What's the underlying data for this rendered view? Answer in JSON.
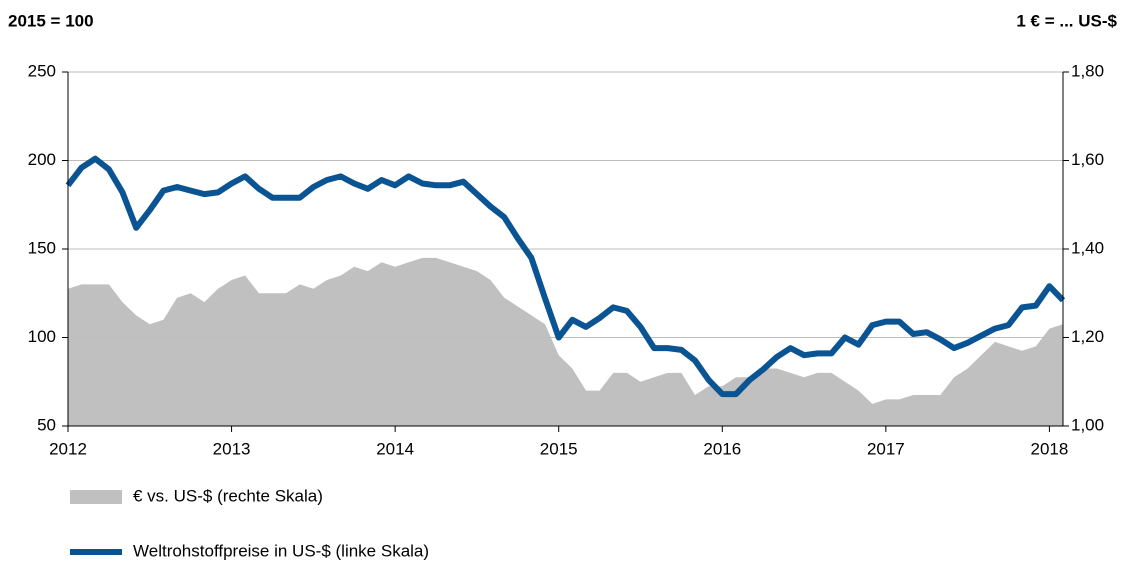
{
  "chart_data": {
    "type": "line",
    "y_axis_title": "2015 = 100",
    "y2_axis_title": "1 € = ... US-$",
    "x": [
      2012,
      2012.083,
      2012.167,
      2012.25,
      2012.333,
      2012.417,
      2012.5,
      2012.583,
      2012.667,
      2012.75,
      2012.833,
      2012.917,
      2013,
      2013.083,
      2013.167,
      2013.25,
      2013.333,
      2013.417,
      2013.5,
      2013.583,
      2013.667,
      2013.75,
      2013.833,
      2013.917,
      2014,
      2014.083,
      2014.167,
      2014.25,
      2014.333,
      2014.417,
      2014.5,
      2014.583,
      2014.667,
      2014.75,
      2014.833,
      2014.917,
      2015,
      2015.083,
      2015.167,
      2015.25,
      2015.333,
      2015.417,
      2015.5,
      2015.583,
      2015.667,
      2015.75,
      2015.833,
      2015.917,
      2016,
      2016.083,
      2016.167,
      2016.25,
      2016.333,
      2016.417,
      2016.5,
      2016.583,
      2016.667,
      2016.75,
      2016.833,
      2016.917,
      2017,
      2017.083,
      2017.167,
      2017.25,
      2017.333,
      2017.417,
      2017.5,
      2017.583,
      2017.667,
      2017.75,
      2017.833,
      2017.917,
      2018,
      2018.083
    ],
    "series": [
      {
        "name": "€ vs. US-$ (rechte Skala)",
        "color": "#c0c0c0",
        "axis": "y2",
        "style": "area",
        "values": [
          1.31,
          1.32,
          1.32,
          1.32,
          1.28,
          1.25,
          1.23,
          1.24,
          1.29,
          1.3,
          1.28,
          1.31,
          1.33,
          1.34,
          1.3,
          1.3,
          1.3,
          1.32,
          1.31,
          1.33,
          1.34,
          1.36,
          1.35,
          1.37,
          1.36,
          1.37,
          1.38,
          1.38,
          1.37,
          1.36,
          1.35,
          1.33,
          1.29,
          1.27,
          1.25,
          1.23,
          1.16,
          1.13,
          1.08,
          1.08,
          1.12,
          1.12,
          1.1,
          1.11,
          1.12,
          1.12,
          1.07,
          1.09,
          1.09,
          1.11,
          1.11,
          1.13,
          1.13,
          1.12,
          1.11,
          1.12,
          1.12,
          1.1,
          1.08,
          1.05,
          1.06,
          1.06,
          1.07,
          1.07,
          1.07,
          1.11,
          1.13,
          1.16,
          1.19,
          1.18,
          1.17,
          1.18,
          1.22,
          1.23
        ]
      },
      {
        "name": "Weltrohstoffpreise in US-$ (linke Skala)",
        "color": "#0a5494",
        "style": "line",
        "values": [
          186,
          196,
          201,
          195,
          182,
          162,
          172,
          183,
          185,
          183,
          181,
          182,
          187,
          191,
          184,
          179,
          179,
          179,
          185,
          189,
          191,
          187,
          184,
          189,
          186,
          191,
          187,
          186,
          186,
          188,
          181,
          174,
          168,
          156,
          145,
          122,
          100,
          110,
          106,
          111,
          117,
          115,
          106,
          94,
          94,
          93,
          87,
          76,
          68,
          68,
          76,
          82,
          89,
          94,
          90,
          91,
          91,
          100,
          96,
          107,
          109,
          109,
          102,
          103,
          99,
          94,
          97,
          101,
          105,
          107,
          117,
          118,
          129,
          121
        ]
      }
    ],
    "xlim": [
      2012,
      2018.083
    ],
    "xticks": [
      2012,
      2013,
      2014,
      2015,
      2016,
      2017,
      2018
    ],
    "ylim": [
      50,
      250
    ],
    "yticks": [
      50,
      100,
      150,
      200,
      250
    ],
    "y2lim": [
      1.0,
      1.8
    ],
    "y2ticks": [
      {
        "value": 1.0,
        "label": "1,00"
      },
      {
        "value": 1.2,
        "label": "1,20"
      },
      {
        "value": 1.4,
        "label": "1,40"
      },
      {
        "value": 1.6,
        "label": "1,60"
      },
      {
        "value": 1.8,
        "label": "1,80"
      }
    ],
    "grid": true
  }
}
